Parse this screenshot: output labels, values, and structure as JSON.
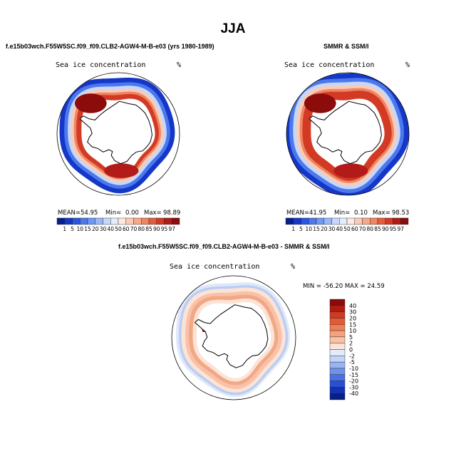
{
  "title": "JJA",
  "panels": [
    {
      "id": "model",
      "title": "f.e15b03wch.F55W5SC.f09_f09.CLB2-AGW4-M-B-e03 (yrs 1980-1989)",
      "variable": "Sea ice concentration",
      "units": "%",
      "stats": {
        "mean_label": "MEAN=",
        "mean": "54.95",
        "min_label": "Min=",
        "min": "0.00",
        "max_label": "Max=",
        "max": "98.89"
      }
    },
    {
      "id": "obs",
      "title": "SMMR & SSM/I",
      "variable": "Sea ice concentration",
      "units": "%",
      "stats": {
        "mean_label": "MEAN=",
        "mean": "41.95",
        "min_label": "Min=",
        "min": "0.10",
        "max_label": "Max=",
        "max": "98.53"
      }
    },
    {
      "id": "diff",
      "title": "f.e15b03wch.F55W5SC.f09_f09.CLB2-AGW4-M-B-e03 - SMMR & SSM/I",
      "variable": "Sea ice concentration",
      "units": "%",
      "minmax": "MIN = -56.20 MAX =  24.59"
    }
  ],
  "chart_data": [
    {
      "type": "heatmap",
      "projection": "south-polar-stereographic",
      "title": "f.e15b03wch.F55W5SC.f09_f09.CLB2-AGW4-M-B-e03 (yrs 1980-1989)",
      "variable": "Sea ice concentration",
      "units": "%",
      "colorbar_levels": [
        "1",
        "5",
        "10",
        "15",
        "20",
        "30",
        "40",
        "50",
        "60",
        "70",
        "80",
        "85",
        "90",
        "95",
        "97"
      ],
      "colorbar_colors": [
        "#0a1f8f",
        "#1537c8",
        "#2a55e0",
        "#4b78ec",
        "#7097f2",
        "#9ab6f6",
        "#c6d7fb",
        "#e4edfc",
        "#fde9df",
        "#f9cbb6",
        "#f5a98a",
        "#ef8563",
        "#e45d3e",
        "#d23a24",
        "#b31b1b",
        "#8c0b0b"
      ],
      "mean": 54.95,
      "min": 0.0,
      "max": 98.89
    },
    {
      "type": "heatmap",
      "projection": "south-polar-stereographic",
      "title": "SMMR & SSM/I",
      "variable": "Sea ice concentration",
      "units": "%",
      "colorbar_levels": [
        "1",
        "5",
        "10",
        "15",
        "20",
        "30",
        "40",
        "50",
        "60",
        "70",
        "80",
        "85",
        "90",
        "95",
        "97"
      ],
      "colorbar_colors": [
        "#0a1f8f",
        "#1537c8",
        "#2a55e0",
        "#4b78ec",
        "#7097f2",
        "#9ab6f6",
        "#c6d7fb",
        "#e4edfc",
        "#fde9df",
        "#f9cbb6",
        "#f5a98a",
        "#ef8563",
        "#e45d3e",
        "#d23a24",
        "#b31b1b",
        "#8c0b0b"
      ],
      "mean": 41.95,
      "min": 0.1,
      "max": 98.53
    },
    {
      "type": "heatmap",
      "projection": "south-polar-stereographic",
      "title": "f.e15b03wch.F55W5SC.f09_f09.CLB2-AGW4-M-B-e03 - SMMR & SSM/I",
      "variable": "Sea ice concentration",
      "units": "%",
      "colorbar_levels": [
        "40",
        "30",
        "20",
        "15",
        "10",
        "5",
        "2",
        "0",
        "-2",
        "-5",
        "-10",
        "-15",
        "-20",
        "-30",
        "-40"
      ],
      "colorbar_colors": [
        "#8b0a0a",
        "#b01c14",
        "#cf3a22",
        "#e45a35",
        "#ef7d55",
        "#f5a07e",
        "#f8c2a8",
        "#fce3d6",
        "#e2ebfb",
        "#c3d4f7",
        "#98b4f2",
        "#6f92ec",
        "#4a70e3",
        "#2a4fd4",
        "#1234b4",
        "#081f86"
      ],
      "min": -56.2,
      "max": 24.59
    }
  ]
}
